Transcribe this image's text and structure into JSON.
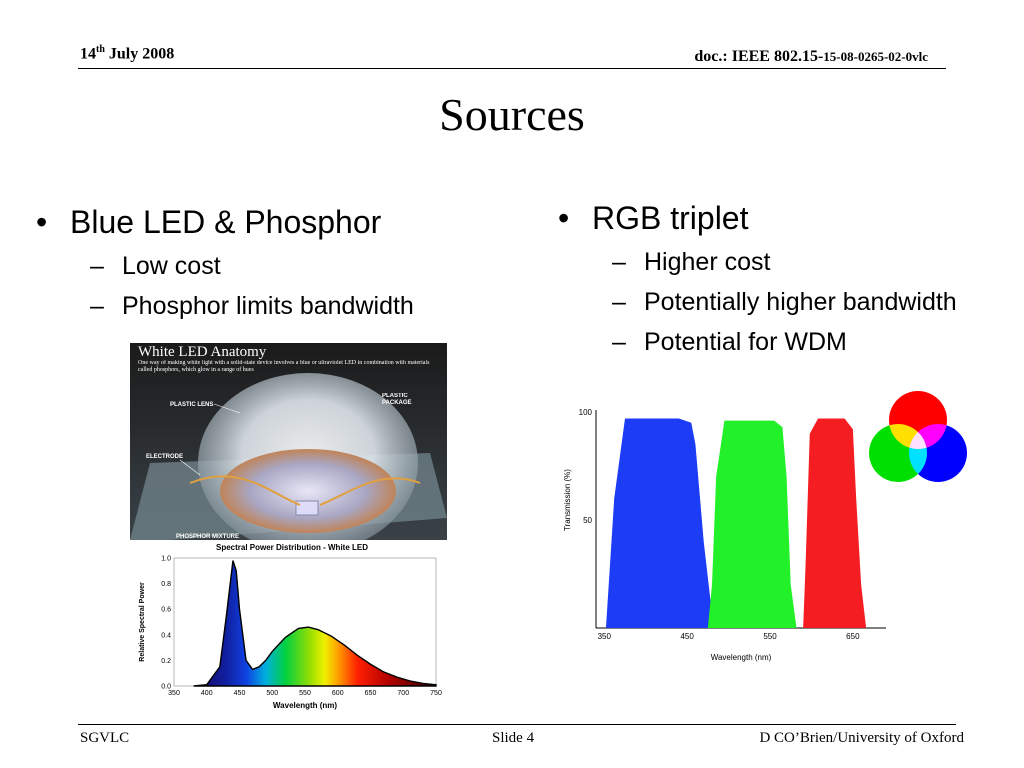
{
  "header": {
    "date_day": "14",
    "date_sup": "th",
    "date_rest": " July 2008",
    "doc_prefix": "doc.: IEEE 802.15-",
    "doc_number": "15-08-0265-02-0vlc"
  },
  "title": "Sources",
  "left_column": {
    "bullet": "Blue LED & Phosphor",
    "subs": [
      "Low cost",
      "Phosphor limits bandwidth"
    ]
  },
  "right_column": {
    "bullet": "RGB triplet",
    "subs": [
      "Higher cost",
      "Potentially higher bandwidth",
      "Potential for WDM"
    ]
  },
  "led_image": {
    "title": "White LED Anatomy",
    "caption": "One way of making white light with a solid-state device involves a blue or ultraviolet LED in combination with materials called phosphors, which glow in a range of hues",
    "labels": [
      "PLASTIC LENS",
      "PLASTIC PACKAGE",
      "ELECTRODE",
      "PHOSPHOR MIXTURE"
    ]
  },
  "chart_data": [
    {
      "type": "area",
      "title": "Spectral Power Distribution - White LED",
      "xlabel": "Wavelength (nm)",
      "ylabel": "Relative Spectral Power",
      "xlim": [
        350,
        750
      ],
      "ylim": [
        0,
        1.0
      ],
      "x_ticks": [
        350,
        400,
        450,
        500,
        550,
        600,
        650,
        700,
        750
      ],
      "y_ticks": [
        0.0,
        0.2,
        0.4,
        0.6,
        0.8,
        1.0
      ],
      "y_tick_labels": [
        "0.0",
        "0.2",
        "0.4",
        "0.6",
        "0.8",
        "1.0"
      ],
      "x": [
        380,
        400,
        420,
        430,
        440,
        445,
        450,
        460,
        470,
        480,
        490,
        500,
        520,
        540,
        555,
        570,
        590,
        610,
        630,
        650,
        670,
        690,
        710,
        730,
        750
      ],
      "values": [
        0.0,
        0.01,
        0.15,
        0.55,
        0.98,
        0.9,
        0.6,
        0.2,
        0.13,
        0.15,
        0.2,
        0.27,
        0.38,
        0.45,
        0.46,
        0.44,
        0.39,
        0.32,
        0.24,
        0.17,
        0.11,
        0.07,
        0.04,
        0.02,
        0.01
      ]
    },
    {
      "type": "area",
      "xlabel": "Wavelength (nm)",
      "ylabel": "Transmission (%)",
      "xlim": [
        340,
        690
      ],
      "ylim": [
        0,
        100
      ],
      "x_ticks": [
        350,
        450,
        550,
        650
      ],
      "y_ticks": [
        50,
        100
      ],
      "series": [
        {
          "color": "#1c3cf5",
          "x": [
            352,
            362,
            375,
            440,
            455,
            460,
            470,
            482
          ],
          "values": [
            0,
            60,
            97,
            97,
            95,
            85,
            40,
            0
          ]
        },
        {
          "color": "#22f028",
          "x": [
            475,
            480,
            485,
            495,
            555,
            565,
            570,
            575,
            582
          ],
          "values": [
            0,
            20,
            70,
            96,
            96,
            93,
            70,
            20,
            0
          ]
        },
        {
          "color": "#f41e22",
          "x": [
            590,
            593,
            598,
            608,
            640,
            650,
            654,
            660,
            666
          ],
          "values": [
            0,
            30,
            90,
            97,
            97,
            92,
            60,
            20,
            0
          ]
        }
      ]
    }
  ],
  "colors": {
    "red": "#ff0000",
    "green": "#00e000",
    "blue": "#0000ff",
    "yellow": "#ffff00",
    "cyan": "#00ffff",
    "magenta": "#ff00ff",
    "white": "#ffffff"
  },
  "footer": {
    "left": "SGVLC",
    "middle": "Slide 4",
    "right": "D CO’Brien/University of Oxford"
  }
}
